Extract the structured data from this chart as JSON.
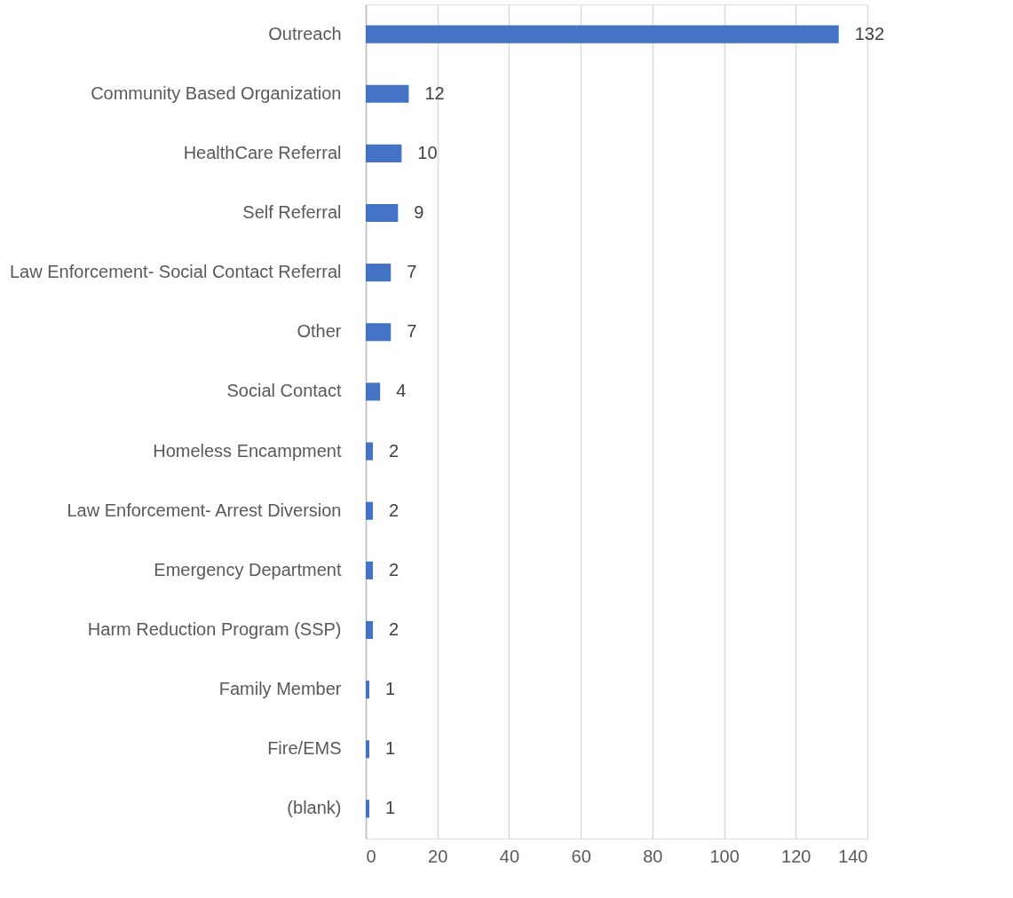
{
  "chart_data": {
    "type": "bar",
    "orientation": "horizontal",
    "categories": [
      "Outreach",
      "Community Based Organization",
      "HealthCare Referral",
      "Self Referral",
      "Law Enforcement- Social Contact Referral",
      "Other",
      "Social Contact",
      "Homeless Encampment",
      "Law Enforcement- Arrest Diversion",
      "Emergency Department",
      "Harm Reduction Program (SSP)",
      "Family Member",
      "Fire/EMS",
      "(blank)"
    ],
    "values": [
      132,
      12,
      10,
      9,
      7,
      7,
      4,
      2,
      2,
      2,
      2,
      1,
      1,
      1
    ],
    "color": "#4472c4",
    "xlim": [
      0,
      140
    ],
    "xticks": [
      0,
      20,
      40,
      60,
      80,
      100,
      120,
      140
    ],
    "grid": "x",
    "data_labels": true
  }
}
